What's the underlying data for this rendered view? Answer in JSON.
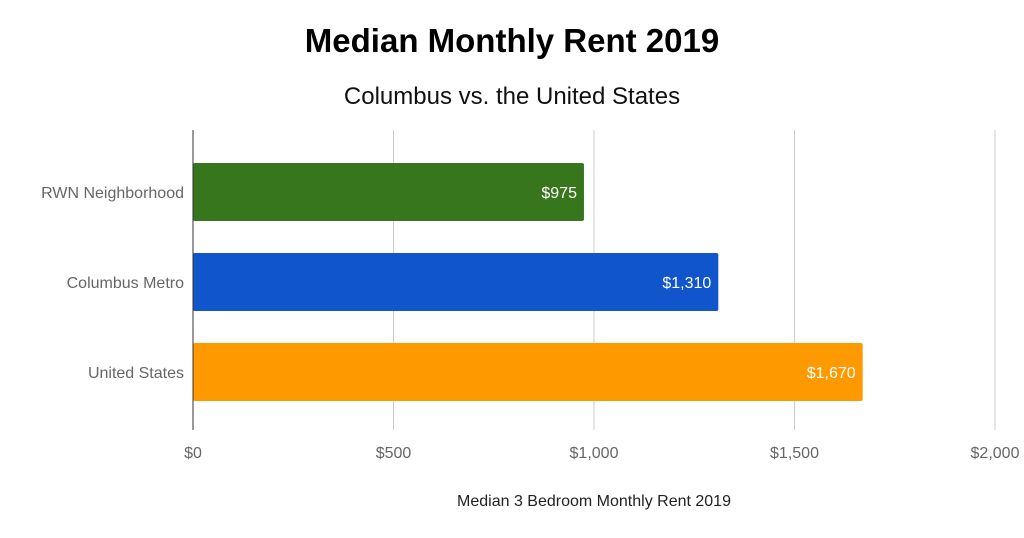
{
  "chart_data": {
    "type": "bar",
    "orientation": "horizontal",
    "title": "Median Monthly Rent 2019",
    "subtitle": "Columbus vs. the United States",
    "xlabel": "Median 3 Bedroom Monthly Rent 2019",
    "ylabel": "",
    "categories": [
      "RWN Neighborhood",
      "Columbus Metro",
      "United States"
    ],
    "values": [
      975,
      1310,
      1670
    ],
    "data_labels": [
      "$975",
      "$1,310",
      "$1,670"
    ],
    "colors": [
      "#38761d",
      "#1155cc",
      "#ff9900"
    ],
    "xlim": [
      0,
      2000
    ],
    "x_ticks": [
      0,
      500,
      1000,
      1500,
      2000
    ],
    "x_tick_labels": [
      "$0",
      "$500",
      "$1,000",
      "$1,500",
      "$2,000"
    ],
    "grid": "vertical",
    "legend": "none"
  }
}
